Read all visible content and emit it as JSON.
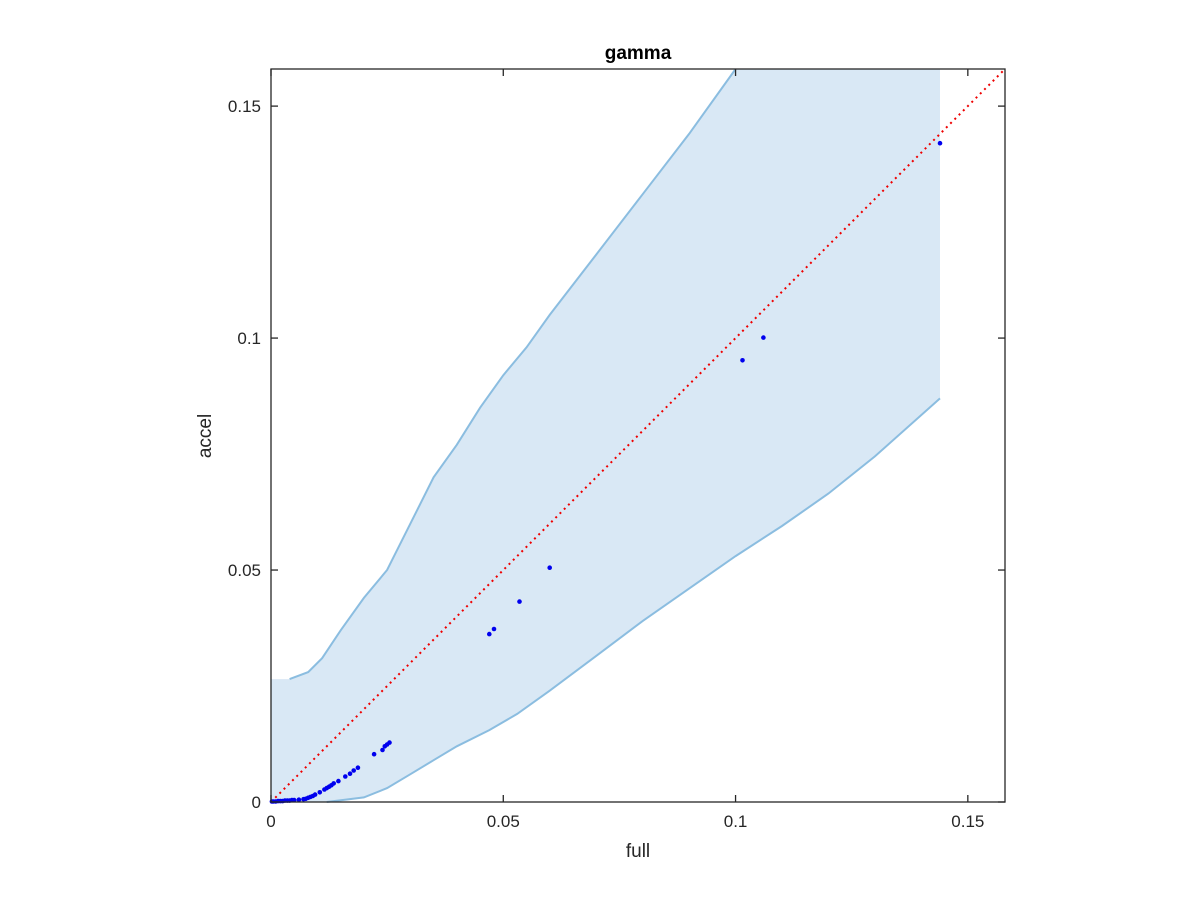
{
  "chart_data": {
    "type": "scatter",
    "title": "gamma",
    "xlabel": "full",
    "ylabel": "accel",
    "xlim": [
      0,
      0.158
    ],
    "ylim": [
      0,
      0.158
    ],
    "xticks": [
      0,
      0.05,
      0.1,
      0.15
    ],
    "yticks": [
      0,
      0.05,
      0.1,
      0.15
    ],
    "xtick_labels": [
      "0",
      "0.05",
      "0.1",
      "0.15"
    ],
    "ytick_labels": [
      "0",
      "0.05",
      "0.1",
      "0.15"
    ],
    "grid": false,
    "legend": "none",
    "colors": {
      "points": "#0000ee",
      "reference_line": "#ee0000",
      "band_fill": "#d9e8f5",
      "band_edge": "#8bbde0",
      "axes": "#262626"
    },
    "reference_line": {
      "style": "dotted",
      "x": [
        0,
        0.158
      ],
      "y": [
        0,
        0.158
      ]
    },
    "band": {
      "upper": [
        [
          0,
          0.0265
        ],
        [
          0.004,
          0.0265
        ],
        [
          0.008,
          0.028
        ],
        [
          0.011,
          0.031
        ],
        [
          0.015,
          0.037
        ],
        [
          0.02,
          0.044
        ],
        [
          0.025,
          0.05
        ],
        [
          0.03,
          0.06
        ],
        [
          0.035,
          0.07
        ],
        [
          0.04,
          0.077
        ],
        [
          0.045,
          0.085
        ],
        [
          0.05,
          0.092
        ],
        [
          0.055,
          0.098
        ],
        [
          0.06,
          0.105
        ],
        [
          0.07,
          0.118
        ],
        [
          0.08,
          0.131
        ],
        [
          0.09,
          0.144
        ],
        [
          0.1,
          0.158
        ],
        [
          0.144,
          0.158
        ]
      ],
      "lower": [
        [
          0,
          0
        ],
        [
          0.012,
          0
        ],
        [
          0.02,
          0.001
        ],
        [
          0.025,
          0.003
        ],
        [
          0.03,
          0.006
        ],
        [
          0.035,
          0.009
        ],
        [
          0.04,
          0.012
        ],
        [
          0.047,
          0.0155
        ],
        [
          0.053,
          0.019
        ],
        [
          0.06,
          0.024
        ],
        [
          0.07,
          0.0315
        ],
        [
          0.08,
          0.039
        ],
        [
          0.09,
          0.046
        ],
        [
          0.1,
          0.053
        ],
        [
          0.11,
          0.0595
        ],
        [
          0.12,
          0.0665
        ],
        [
          0.13,
          0.0745
        ],
        [
          0.144,
          0.087
        ]
      ]
    },
    "series": [
      {
        "points": [
          [
            0.0002,
            0.0001
          ],
          [
            0.0005,
            0.0001
          ],
          [
            0.001,
            0.0001
          ],
          [
            0.0015,
            0.0002
          ],
          [
            0.002,
            0.0002
          ],
          [
            0.0025,
            0.0002
          ],
          [
            0.003,
            0.0003
          ],
          [
            0.0035,
            0.0003
          ],
          [
            0.004,
            0.0003
          ],
          [
            0.0045,
            0.0004
          ],
          [
            0.005,
            0.0004
          ],
          [
            0.006,
            0.0005
          ],
          [
            0.007,
            0.0006
          ],
          [
            0.0075,
            0.0007
          ],
          [
            0.008,
            0.0009
          ],
          [
            0.0085,
            0.0011
          ],
          [
            0.009,
            0.0013
          ],
          [
            0.0095,
            0.0016
          ],
          [
            0.0105,
            0.0021
          ],
          [
            0.0115,
            0.0027
          ],
          [
            0.012,
            0.003
          ],
          [
            0.0125,
            0.0033
          ],
          [
            0.013,
            0.0036
          ],
          [
            0.0135,
            0.004
          ],
          [
            0.0145,
            0.0045
          ],
          [
            0.016,
            0.0055
          ],
          [
            0.017,
            0.0061
          ],
          [
            0.0178,
            0.0068
          ],
          [
            0.0187,
            0.0074
          ],
          [
            0.0222,
            0.0103
          ],
          [
            0.024,
            0.0112
          ],
          [
            0.0245,
            0.012
          ],
          [
            0.025,
            0.0124
          ],
          [
            0.0255,
            0.0128
          ],
          [
            0.047,
            0.0362
          ],
          [
            0.048,
            0.0373
          ],
          [
            0.0535,
            0.0432
          ],
          [
            0.06,
            0.0505
          ],
          [
            0.1015,
            0.0952
          ],
          [
            0.106,
            0.1001
          ],
          [
            0.144,
            0.142
          ]
        ]
      }
    ]
  }
}
